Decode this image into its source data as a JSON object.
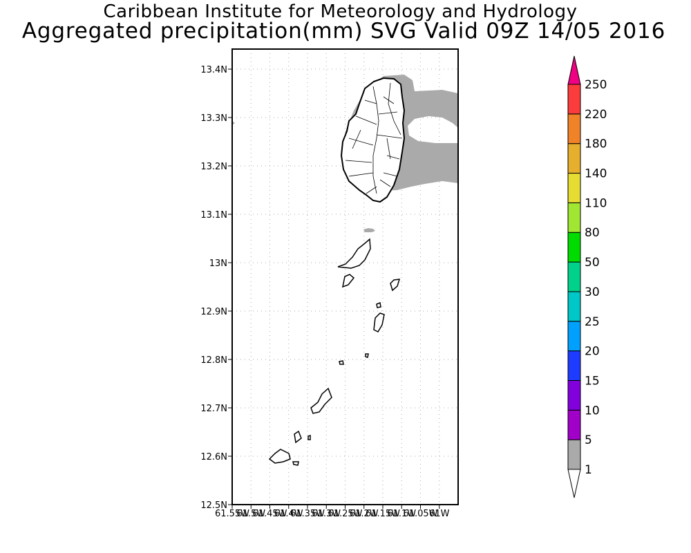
{
  "header": {
    "institution": "Caribbean Institute for Meteorology and Hydrology",
    "product": "Aggregated precipitation(mm) SVG Valid 09Z 14/05 2016"
  },
  "map": {
    "lat_ticks": [
      "13.4N",
      "13.3N",
      "13.2N",
      "13.1N",
      "13N",
      "12.9N",
      "12.8N",
      "12.7N",
      "12.6N",
      "12.5N"
    ],
    "lon_ticks": [
      "61.55W",
      "61.5W",
      "61.45W",
      "61.4W",
      "61.35W",
      "61.3W",
      "61.25W",
      "61.2W",
      "61.15W",
      "61.1W",
      "61.05W",
      "61W"
    ],
    "precip_fill_color": "#aaaaaa",
    "coastline_color": "#000000"
  },
  "colorbar": {
    "labels": [
      "1",
      "5",
      "10",
      "15",
      "20",
      "25",
      "30",
      "50",
      "80",
      "110",
      "140",
      "180",
      "220",
      "250"
    ],
    "colors": [
      "#aaaaaa",
      "#a000c8",
      "#8200dc",
      "#1e3cff",
      "#00a0ff",
      "#00c8c8",
      "#00d28c",
      "#00dc00",
      "#a0e632",
      "#e6dc32",
      "#e6af2d",
      "#f08228",
      "#fa3c3c",
      "#f00082"
    ],
    "below_color": "#ffffff",
    "above_color": "#f00082"
  }
}
